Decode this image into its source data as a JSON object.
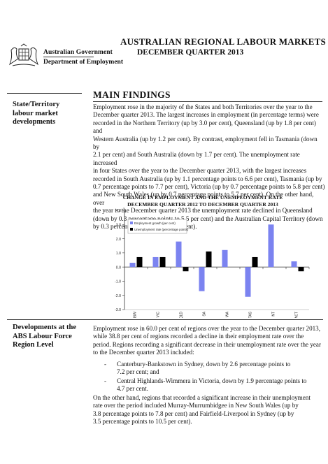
{
  "header": {
    "org_line1": "Australian Government",
    "org_line2": "Department of Employment",
    "title": "AUSTRALIAN REGIONAL LABOUR MARKETS",
    "subtitle": "DECEMBER QUARTER 2013"
  },
  "section1": {
    "side_heading": [
      "State/Territory",
      "labour market",
      "developments"
    ],
    "main_heading": "MAIN FINDINGS",
    "paragraph_lines": [
      "Employment rose in the majority of the States and both Territories over the year to the",
      "December quarter 2013. The largest increases in employment (in percentage terms) were",
      "recorded in the Northern Territory (up by 3.0 per cent), Queensland (up by 1.8 per cent) and",
      "Western Australia (up by 1.2 per cent). By contrast, employment fell in Tasmania (down by",
      "2.1 per cent) and South Australia (down by 1.7 per cent). The unemployment rate increased",
      "in four States over the year to the December quarter 2013, with the largest increases",
      "recorded in South Australia (up by 1.1 percentage points to 6.6 per cent), Tasmania (up by",
      "0.7 percentage points to 7.7 per cent), Victoria (up by 0.7 percentage points to 5.8 per cent)",
      "and New South Wales (up by 0.7 percentage points to 5.7 per cent). On the other hand, over",
      "the year to the December quarter 2013 the unemployment rate declined in Queensland",
      "(down by 0.3 percentage points to 5.5 per cent) and the Australian Capital Territory (down",
      "by 0.3 percentage points to 3.6 per cent)."
    ]
  },
  "chart_data": {
    "type": "bar",
    "title": [
      "CHANGE IN EMPLOYMENT AND THE UNEMPLOYMENT RATE",
      "DECEMBER QUARTER 2012 TO DECEMBER QUARTER 2013"
    ],
    "categories": [
      "NSW",
      "VIC",
      "QLD",
      "SA",
      "WA",
      "TAS",
      "NT",
      "ACT"
    ],
    "series": [
      {
        "name": "Employment growth (per cent)",
        "values": [
          0.3,
          0.7,
          1.8,
          -1.7,
          1.2,
          -2.1,
          3.0,
          0.4
        ],
        "color": "#7b83f0"
      },
      {
        "name": "Unemployment rate (percentage points)",
        "values": [
          0.7,
          0.7,
          -0.3,
          1.1,
          0.0,
          0.7,
          0.0,
          -0.3
        ],
        "color": "#000000"
      }
    ],
    "ylim": [
      -3.0,
      4.0
    ],
    "yticks": [
      "4.0",
      "3.0",
      "2.0",
      "1.0",
      "0.0",
      "-1.0",
      "-2.0",
      "-3.0"
    ],
    "ytick_values": [
      4,
      3,
      2,
      1,
      0,
      -1,
      -2,
      -3
    ],
    "legend": "top-left",
    "grid": false
  },
  "section2": {
    "side_heading": [
      "Developments at the",
      "ABS Labour Force",
      "Region Level"
    ],
    "paragraph1_lines": [
      "Employment rose in 60.0 per cent of regions over the year to the December quarter 2013,",
      "while 38.8 per cent of regions recorded a decline in their employment rate over the",
      "period. Regions recording a significant decrease in their unemployment rate over the year",
      "to the December quarter 2013 included:"
    ],
    "bullets": [
      {
        "marker": "-",
        "lines": [
          "Canterbury-Bankstown in Sydney, down by 2.6 percentage points to",
          "7.2 per cent; and"
        ]
      },
      {
        "marker": "-",
        "lines": [
          "Central Highlands-Wimmera in Victoria, down by 1.9 percentage points to",
          "4.7 per cent."
        ]
      }
    ],
    "paragraph2_lines": [
      "On the other hand, regions that recorded a significant increase in their unemployment",
      "rate over the period included Murray-Murrumbidgee in New South Wales (up by",
      "3.8 percentage points to 7.8 per cent) and Fairfield-Liverpool in Sydney (up by",
      "3.5 percentage points to 10.5 per cent)."
    ]
  }
}
